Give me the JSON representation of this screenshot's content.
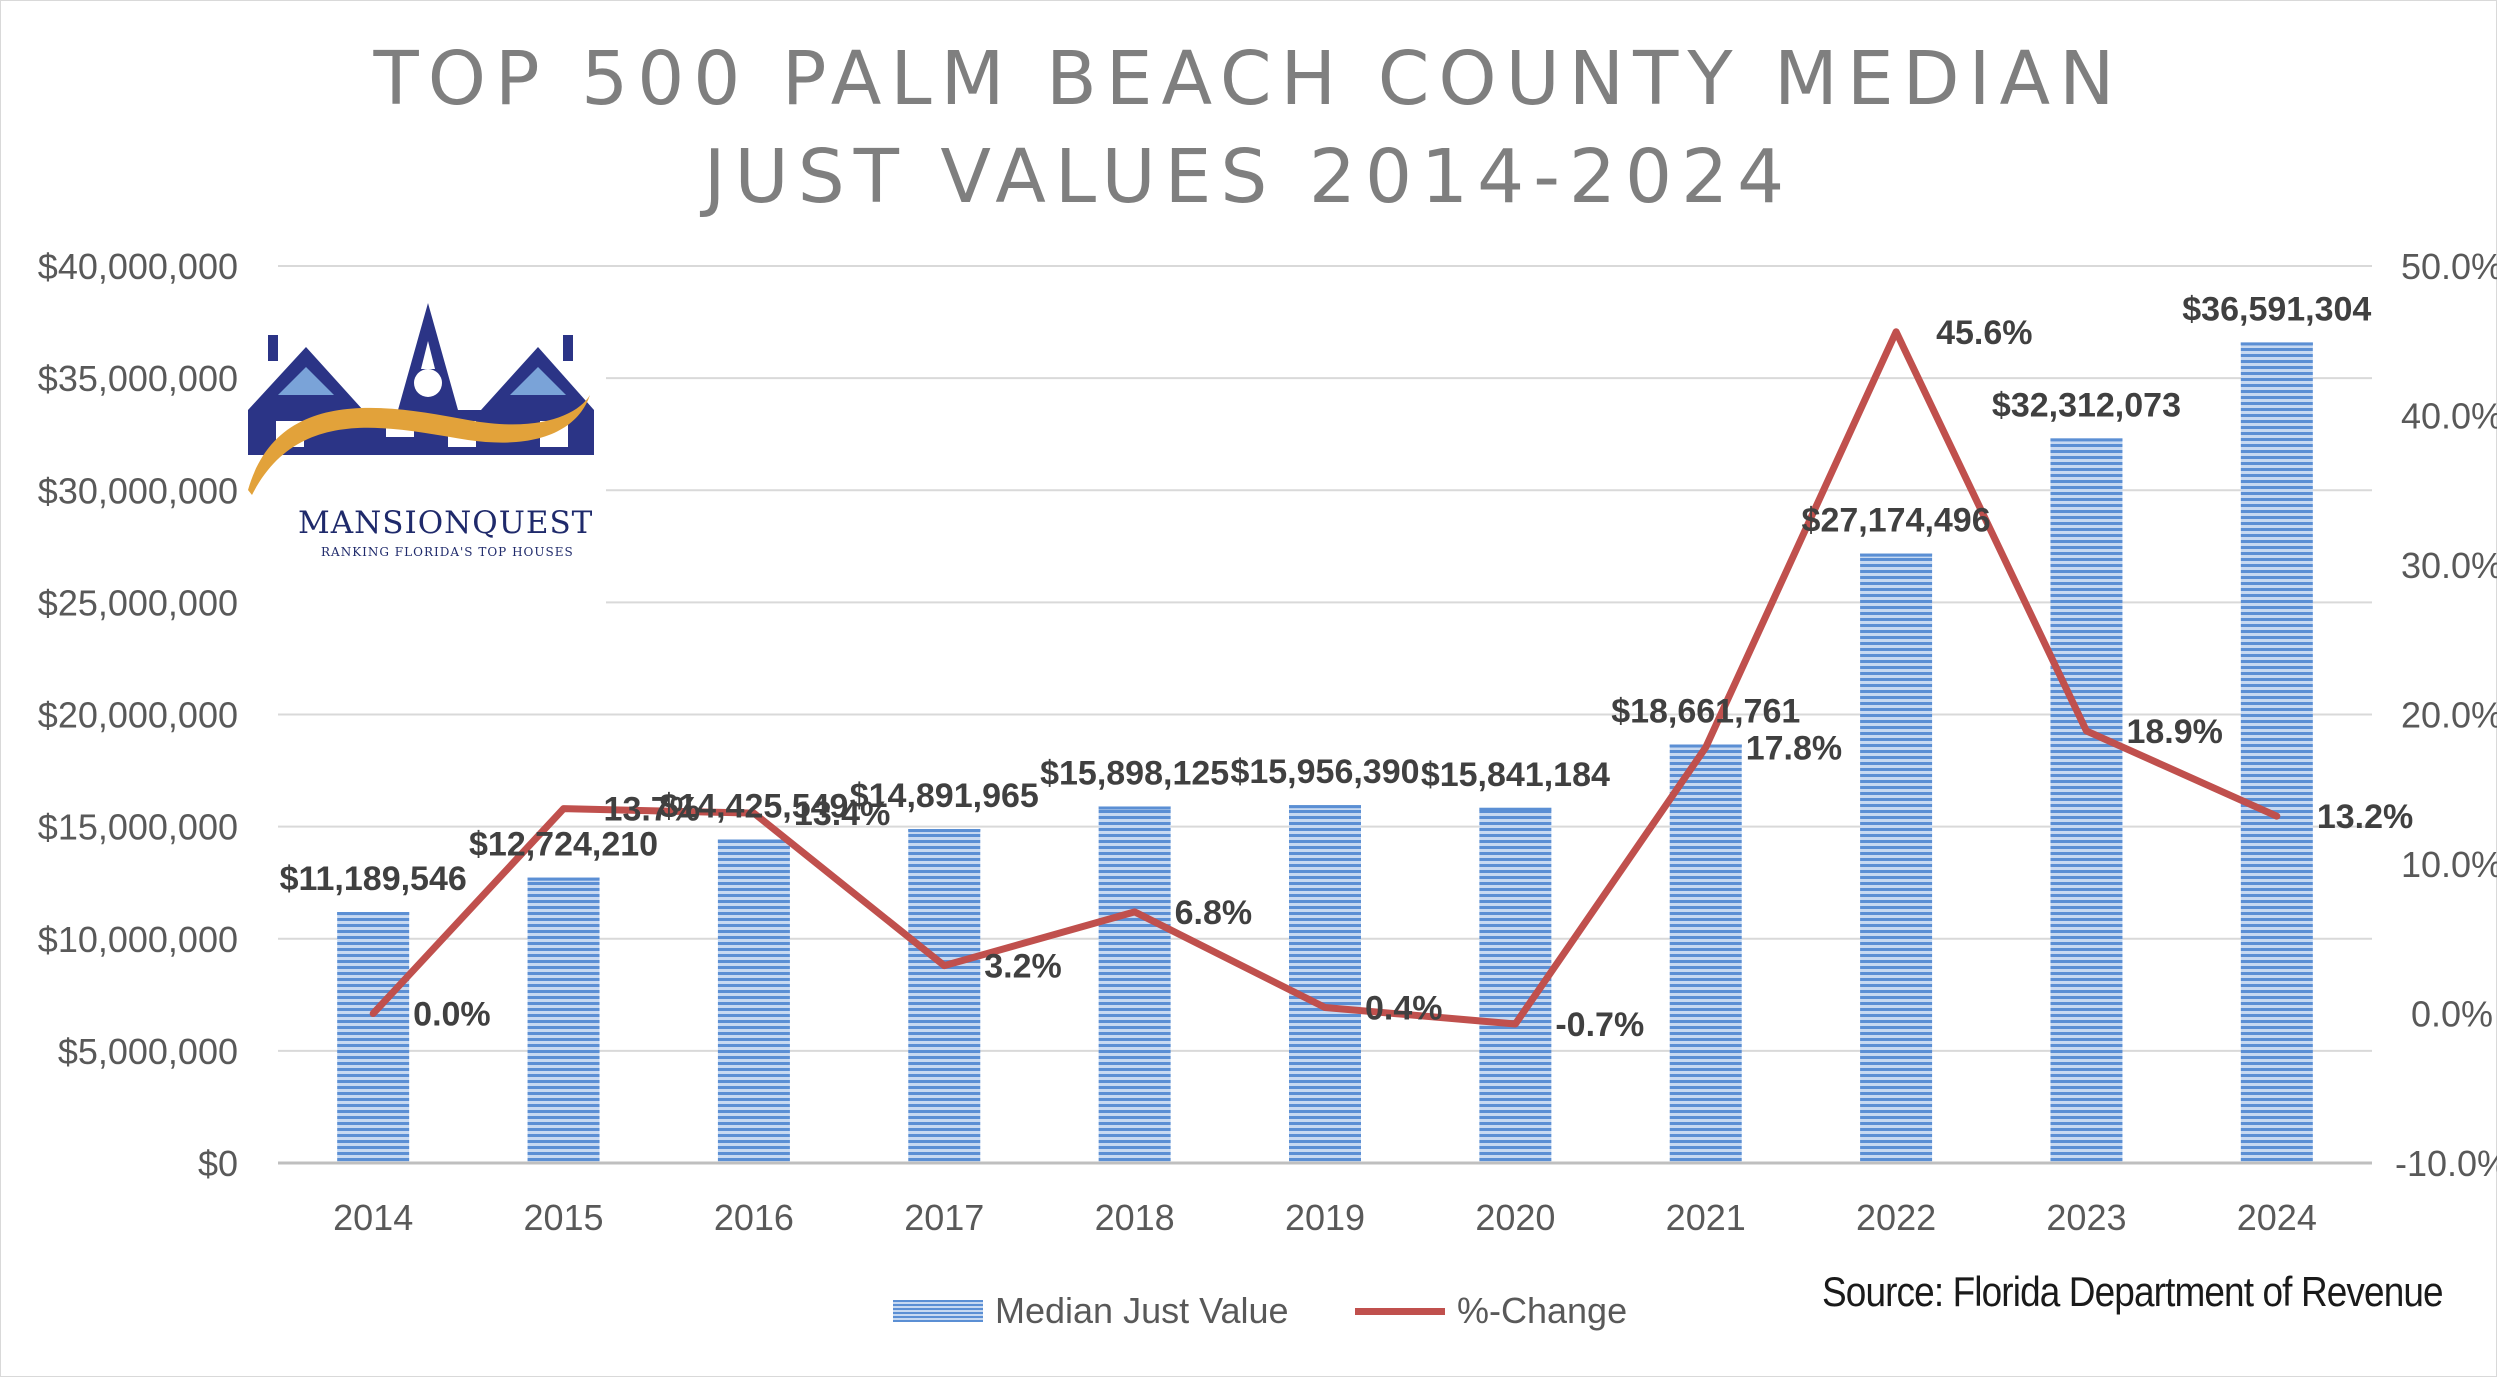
{
  "chart_data": {
    "type": "bar+line",
    "title": [
      "TOP 500 PALM BEACH COUNTY MEDIAN",
      "JUST VALUES 2014-2024"
    ],
    "categories": [
      "2014",
      "2015",
      "2016",
      "2017",
      "2018",
      "2019",
      "2020",
      "2021",
      "2022",
      "2023",
      "2024"
    ],
    "series": [
      {
        "name": "Median Just Value",
        "type": "bar",
        "axis": "left",
        "color": "#5b8fd4",
        "values": [
          11189546,
          12724210,
          14425549,
          14891965,
          15898125,
          15956390,
          15841184,
          18661761,
          27174496,
          32312073,
          36591304
        ],
        "labels": [
          "$11,189,546",
          "$12,724,210",
          "$14,425,549",
          "$14,891,965",
          "$15,898,125",
          "$15,956,390",
          "$15,841,184",
          "$18,661,761",
          "$27,174,496",
          "$32,312,073",
          "$36,591,304"
        ]
      },
      {
        "name": "%-Change",
        "type": "line",
        "axis": "right",
        "color": "#c0504d",
        "values": [
          0.0,
          13.7,
          13.4,
          3.2,
          6.8,
          0.4,
          -0.7,
          17.8,
          45.6,
          18.9,
          13.2
        ],
        "labels": [
          "0.0%",
          "13.7%",
          "13.4%",
          "3.2%",
          "6.8%",
          "0.4%",
          "-0.7%",
          "17.8%",
          "45.6%",
          "18.9%",
          "13.2%"
        ]
      }
    ],
    "y_left": {
      "range": [
        0,
        40000000
      ],
      "ticks": [
        0,
        5000000,
        10000000,
        15000000,
        20000000,
        25000000,
        30000000,
        35000000,
        40000000
      ],
      "tick_labels": [
        "$0",
        "$5,000,000",
        "$10,000,000",
        "$15,000,000",
        "$20,000,000",
        "$25,000,000",
        "$30,000,000",
        "$35,000,000",
        "$40,000,000"
      ]
    },
    "y_right": {
      "range": [
        -10,
        50
      ],
      "ticks": [
        -10,
        0,
        10,
        20,
        30,
        40,
        50
      ],
      "tick_labels": [
        "-10.0%",
        "0.0%",
        "10.0%",
        "20.0%",
        "30.0%",
        "40.0%",
        "50.0%"
      ]
    },
    "grid": true,
    "legend_position": "bottom"
  },
  "logo": {
    "name": "MANSIONQUEST",
    "tagline": "RANKING FLORIDA'S TOP HOUSES"
  },
  "source": "Source: Florida Department of Revenue"
}
